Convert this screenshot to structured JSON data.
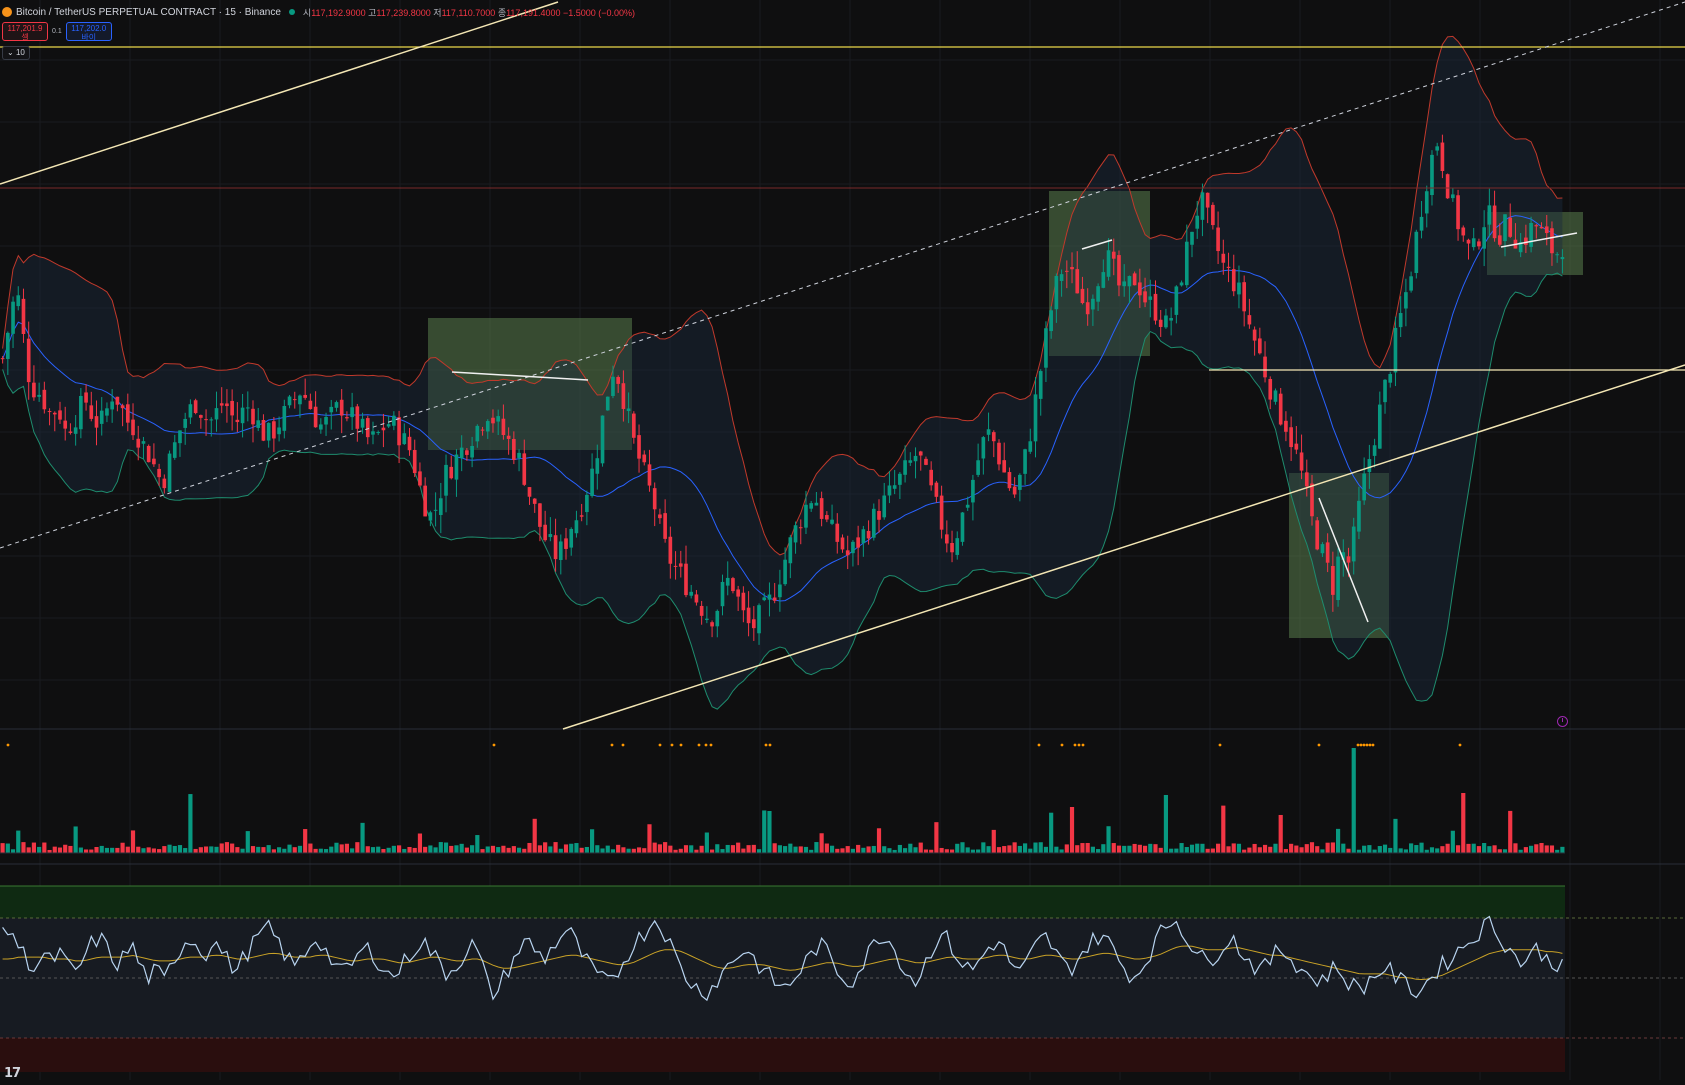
{
  "header": {
    "symbol_title": "Bitcoin / TetherUS PERPETUAL CONTRACT · 15 · Binance",
    "ohlc": {
      "open_label": "시",
      "open": "117,192.9000",
      "high_label": "고",
      "high": "117,239.8000",
      "low_label": "저",
      "low": "117,110.7000",
      "close_label": "종",
      "close": "117,191.4000",
      "change": "−1.5000 (−0.00%)"
    },
    "sell_price": "117,201.9",
    "sell_label": "셀",
    "spread": "0.1",
    "buy_price": "117,202.0",
    "buy_label": "바이",
    "indicator_toggle": "10"
  },
  "colors": {
    "background": "#0f0f10",
    "up_candle": "#089981",
    "down_candle": "#f23645",
    "bb_upper": "#c0392b",
    "bb_basis": "#2962ff",
    "bb_lower": "#1e8c6e",
    "trendline": "#f3e6b4",
    "horizontal_level": "#e9d84a",
    "zone_fill": "#5a7d4d",
    "rsi_line": "#b8d4f0",
    "rsi_ma": "#c9a227",
    "rsi_overbought_fill": "#0f2a12",
    "rsi_oversold_fill": "#2a0e0e",
    "volume_marker": "#ff9800",
    "clock_icon": "#9c27b0"
  },
  "icons": [
    "coin-icon",
    "live-dot-icon",
    "chevron-down-icon",
    "clock-icon",
    "tradingview-logo-icon"
  ],
  "chart_data": {
    "type": "candlestick",
    "bars": 300,
    "price_close_series": [
      0.56,
      0.63,
      0.7,
      0.6,
      0.51,
      0.5,
      0.48,
      0.45,
      0.47,
      0.42,
      0.44,
      0.46,
      0.48,
      0.45,
      0.43,
      0.46,
      0.5,
      0.47,
      0.44,
      0.43,
      0.4,
      0.38,
      0.35,
      0.32,
      0.36,
      0.4,
      0.44,
      0.46,
      0.48,
      0.45,
      0.44,
      0.46,
      0.48,
      0.45,
      0.44,
      0.47,
      0.46,
      0.43,
      0.41,
      0.42,
      0.44,
      0.46,
      0.48,
      0.5,
      0.48,
      0.45,
      0.43,
      0.44,
      0.46,
      0.47,
      0.45,
      0.44,
      0.42,
      0.4,
      0.41,
      0.43,
      0.44,
      0.42,
      0.4,
      0.38,
      0.32,
      0.28,
      0.25,
      0.3,
      0.34,
      0.36,
      0.38,
      0.4,
      0.42,
      0.44,
      0.46,
      0.44,
      0.42,
      0.4,
      0.38,
      0.35,
      0.3,
      0.26,
      0.22,
      0.2,
      0.18,
      0.2,
      0.24,
      0.26,
      0.3,
      0.34,
      0.4,
      0.48,
      0.54,
      0.52,
      0.46,
      0.4,
      0.36,
      0.32,
      0.28,
      0.22,
      0.18,
      0.16,
      0.14,
      0.12,
      0.1,
      0.08,
      0.06,
      0.08,
      0.12,
      0.14,
      0.1,
      0.06,
      0.04,
      0.06,
      0.08,
      0.1,
      0.14,
      0.18,
      0.22,
      0.25,
      0.28,
      0.3,
      0.27,
      0.24,
      0.22,
      0.2,
      0.18,
      0.2,
      0.22,
      0.24,
      0.26,
      0.28,
      0.3,
      0.32,
      0.34,
      0.36,
      0.38,
      0.34,
      0.3,
      0.26,
      0.22,
      0.2,
      0.24,
      0.28,
      0.33,
      0.38,
      0.42,
      0.4,
      0.36,
      0.32,
      0.3,
      0.34,
      0.4,
      0.48,
      0.56,
      0.64,
      0.7,
      0.74,
      0.72,
      0.7,
      0.66,
      0.68,
      0.72,
      0.76,
      0.74,
      0.7,
      0.68,
      0.72,
      0.7,
      0.67,
      0.66,
      0.64,
      0.62,
      0.66,
      0.72,
      0.78,
      0.84,
      0.86,
      0.82,
      0.78,
      0.74,
      0.72,
      0.7,
      0.66,
      0.62,
      0.58,
      0.54,
      0.5,
      0.46,
      0.44,
      0.4,
      0.36,
      0.3,
      0.24,
      0.2,
      0.16,
      0.12,
      0.2,
      0.16,
      0.22,
      0.3,
      0.36,
      0.42,
      0.48,
      0.54,
      0.6,
      0.66,
      0.72,
      0.8,
      0.88,
      0.94,
      0.98,
      0.92,
      0.86,
      0.82,
      0.78,
      0.76,
      0.8,
      0.84,
      0.82,
      0.8,
      0.82,
      0.8,
      0.78,
      0.8,
      0.82,
      0.8,
      0.78,
      0.76,
      0.78
    ],
    "rsi": {
      "overbought": 70,
      "oversold": 30,
      "middle": 50,
      "series": [
        62,
        68,
        56,
        50,
        45,
        52,
        48,
        54,
        46,
        42,
        50,
        58,
        62,
        55,
        47,
        51,
        58,
        46,
        40,
        44,
        38,
        48,
        56,
        62,
        58,
        52,
        60,
        55,
        48,
        44,
        52,
        58,
        64,
        66,
        60,
        52,
        46,
        50,
        58,
        62,
        54,
        48,
        42,
        46,
        52,
        56,
        52,
        46,
        40,
        44,
        50,
        56,
        60,
        54,
        48,
        42,
        46,
        52,
        58,
        52,
        36,
        30,
        40,
        48,
        56,
        60,
        54,
        50,
        56,
        62,
        66,
        58,
        50,
        44,
        40,
        36,
        42,
        50,
        58,
        62,
        68,
        72,
        64,
        54,
        44,
        38,
        34,
        32,
        36,
        42,
        48,
        52,
        56,
        50,
        44,
        40,
        36,
        34,
        40,
        46,
        52,
        58,
        54,
        46,
        40,
        38,
        44,
        52,
        60,
        64,
        58,
        50,
        42,
        38,
        46,
        56,
        64,
        60,
        52,
        46,
        44,
        50,
        56,
        60,
        54,
        46,
        42,
        50,
        58,
        62,
        56,
        48,
        44,
        50,
        56,
        60,
        64,
        58,
        50,
        44,
        40,
        46,
        54,
        62,
        68,
        72,
        66,
        58,
        52,
        48,
        52,
        58,
        62,
        56,
        50,
        46,
        44,
        50,
        56,
        52,
        48,
        44,
        40,
        38,
        42,
        46,
        40,
        36,
        34,
        38,
        42,
        46,
        42,
        38,
        36,
        32,
        36,
        42,
        46,
        50,
        54,
        58,
        62,
        66,
        70,
        64,
        58,
        52,
        48,
        52,
        56,
        50,
        46,
        52
      ],
      "ma_series": [
        50,
        50,
        51,
        51,
        51,
        51,
        50,
        50,
        50,
        49,
        49,
        50,
        51,
        51,
        51,
        51,
        52,
        51,
        50,
        49,
        49,
        49,
        50,
        51,
        51,
        51,
        52,
        52,
        51,
        50,
        50,
        51,
        52,
        53,
        53,
        52,
        51,
        51,
        51,
        52,
        52,
        51,
        50,
        49,
        49,
        50,
        50,
        50,
        49,
        48,
        48,
        49,
        50,
        51,
        51,
        50,
        49,
        49,
        50,
        50,
        48,
        46,
        45,
        45,
        46,
        47,
        48,
        49,
        50,
        51,
        52,
        52,
        51,
        50,
        49,
        48,
        47,
        47,
        48,
        50,
        52,
        54,
        55,
        55,
        54,
        52,
        50,
        48,
        46,
        45,
        45,
        46,
        47,
        47,
        47,
        46,
        45,
        44,
        44,
        45,
        46,
        47,
        48,
        48,
        47,
        46,
        46,
        47,
        48,
        49,
        50,
        50,
        49,
        48,
        48,
        49,
        50,
        51,
        51,
        50,
        50,
        50,
        51,
        52,
        52,
        51,
        50,
        50,
        51,
        52,
        52,
        51,
        50,
        50,
        51,
        52,
        53,
        53,
        52,
        51,
        50,
        50,
        51,
        52,
        54,
        56,
        57,
        57,
        56,
        55,
        55,
        55,
        56,
        56,
        55,
        54,
        53,
        52,
        52,
        51,
        50,
        49,
        48,
        47,
        46,
        45,
        44,
        43,
        42,
        42,
        42,
        42,
        41,
        40,
        40,
        39,
        39,
        40,
        41,
        43,
        45,
        47,
        49,
        51,
        53,
        54,
        55,
        55,
        55,
        55,
        55,
        54,
        54,
        53
      ]
    },
    "volume": {
      "series_spikes": [
        0.35,
        0.3,
        0.25,
        0.9,
        0.2,
        0.3,
        0.4,
        0.25,
        0.2,
        0.55,
        0.3,
        0.45,
        0.2,
        0.7,
        0.3,
        0.35,
        0.4,
        0.25,
        0.65,
        0.3,
        1.0,
        0.8,
        0.6,
        0.35,
        0.5,
        0.3,
        0.7,
        0.3,
        0.25
      ]
    }
  }
}
